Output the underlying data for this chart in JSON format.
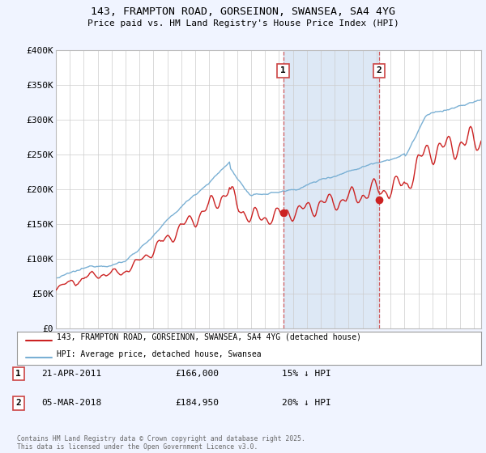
{
  "title": "143, FRAMPTON ROAD, GORSEINON, SWANSEA, SA4 4YG",
  "subtitle": "Price paid vs. HM Land Registry's House Price Index (HPI)",
  "ylabel_ticks": [
    "£0",
    "£50K",
    "£100K",
    "£150K",
    "£200K",
    "£250K",
    "£300K",
    "£350K",
    "£400K"
  ],
  "ylim": [
    0,
    400000
  ],
  "xlim_start": 1995.0,
  "xlim_end": 2025.5,
  "hpi_color": "#7ab0d4",
  "price_color": "#cc2222",
  "vline1_x": 2011.3,
  "vline2_x": 2018.17,
  "vline_color": "#cc4444",
  "sale1_price_val": 166000,
  "sale2_price_val": 184950,
  "sale1_date": "21-APR-2011",
  "sale1_price": "£166,000",
  "sale1_hpi": "15% ↓ HPI",
  "sale2_date": "05-MAR-2018",
  "sale2_price": "£184,950",
  "sale2_hpi": "20% ↓ HPI",
  "legend1": "143, FRAMPTON ROAD, GORSEINON, SWANSEA, SA4 4YG (detached house)",
  "legend2": "HPI: Average price, detached house, Swansea",
  "footer": "Contains HM Land Registry data © Crown copyright and database right 2025.\nThis data is licensed under the Open Government Licence v3.0.",
  "background_color": "#f0f4ff",
  "plot_bg_color": "#ffffff",
  "span_color": "#dde8f5"
}
